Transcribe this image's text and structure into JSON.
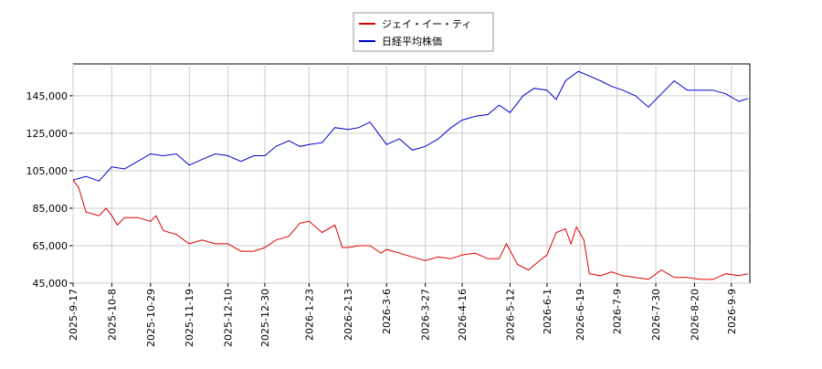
{
  "chart_data": {
    "type": "line",
    "xlim": [
      "2025-9-17",
      "2026-9-19"
    ],
    "xticks": [
      "2025-9-17",
      "2025-10-8",
      "2025-10-29",
      "2025-11-19",
      "2025-12-10",
      "2025-12-30",
      "2026-1-23",
      "2026-2-13",
      "2026-3-6",
      "2026-3-27",
      "2026-4-16",
      "2026-5-12",
      "2026-6-1",
      "2026-6-19",
      "2026-7-9",
      "2026-7-30",
      "2026-8-20",
      "2026-9-9"
    ],
    "ylim": [
      45000,
      162000
    ],
    "yticks": [
      {
        "value": 45000,
        "label": "45,000"
      },
      {
        "value": 65000,
        "label": "65,000"
      },
      {
        "value": 85000,
        "label": "85,000"
      },
      {
        "value": 105000,
        "label": "105,000"
      },
      {
        "value": 125000,
        "label": "125,000"
      },
      {
        "value": 145000,
        "label": "145,000"
      }
    ],
    "grid": true,
    "legend": "top",
    "series": [
      {
        "name": "ジェイ・イー・ティ",
        "color": "#dd0000",
        "x": [
          "2025-9-17",
          "2025-9-20",
          "2025-9-24",
          "2025-10-1",
          "2025-10-5",
          "2025-10-8",
          "2025-10-11",
          "2025-10-15",
          "2025-10-22",
          "2025-10-29",
          "2025-11-1",
          "2025-11-5",
          "2025-11-12",
          "2025-11-19",
          "2025-11-26",
          "2025-12-3",
          "2025-12-10",
          "2025-12-17",
          "2025-12-24",
          "2025-12-30",
          "2026-1-5",
          "2026-1-12",
          "2026-1-18",
          "2026-1-23",
          "2026-1-30",
          "2026-2-6",
          "2026-2-10",
          "2026-2-13",
          "2026-2-19",
          "2026-2-25",
          "2026-3-3",
          "2026-3-6",
          "2026-3-13",
          "2026-3-20",
          "2026-3-27",
          "2026-4-3",
          "2026-4-10",
          "2026-4-16",
          "2026-4-23",
          "2026-4-30",
          "2026-5-6",
          "2026-5-10",
          "2026-5-16",
          "2026-5-22",
          "2026-5-28",
          "2026-6-1",
          "2026-6-6",
          "2026-6-11",
          "2026-6-14",
          "2026-6-17",
          "2026-6-21",
          "2026-6-24",
          "2026-6-30",
          "2026-7-6",
          "2026-7-12",
          "2026-7-19",
          "2026-7-26",
          "2026-8-2",
          "2026-8-9",
          "2026-8-16",
          "2026-8-23",
          "2026-8-30",
          "2026-9-6",
          "2026-9-13",
          "2026-9-18"
        ],
        "values": [
          100000,
          96000,
          83000,
          81000,
          85000,
          81000,
          76000,
          80000,
          80000,
          78000,
          81000,
          73000,
          71000,
          66000,
          68000,
          66000,
          66000,
          62000,
          62000,
          64000,
          68000,
          70000,
          77000,
          78000,
          72000,
          76000,
          64000,
          64000,
          65000,
          65000,
          61000,
          63000,
          61000,
          59000,
          57000,
          59000,
          58000,
          60000,
          61000,
          58000,
          58000,
          66000,
          55000,
          52000,
          57000,
          60000,
          72000,
          74000,
          66000,
          75000,
          68000,
          50000,
          49000,
          51000,
          49000,
          48000,
          47000,
          52000,
          48000,
          48000,
          47000,
          47000,
          50000,
          49000,
          50000
        ]
      },
      {
        "name": "日経平均株価",
        "color": "#0000cc",
        "x": [
          "2025-9-17",
          "2025-9-24",
          "2025-10-1",
          "2025-10-8",
          "2025-10-15",
          "2025-10-22",
          "2025-10-29",
          "2025-11-5",
          "2025-11-12",
          "2025-11-19",
          "2025-11-26",
          "2025-12-3",
          "2025-12-10",
          "2025-12-17",
          "2025-12-24",
          "2025-12-30",
          "2026-1-5",
          "2026-1-12",
          "2026-1-18",
          "2026-1-23",
          "2026-1-30",
          "2026-2-6",
          "2026-2-13",
          "2026-2-19",
          "2026-2-25",
          "2026-3-6",
          "2026-3-13",
          "2026-3-20",
          "2026-3-27",
          "2026-4-3",
          "2026-4-10",
          "2026-4-16",
          "2026-4-23",
          "2026-4-30",
          "2026-5-6",
          "2026-5-12",
          "2026-5-19",
          "2026-5-25",
          "2026-6-1",
          "2026-6-6",
          "2026-6-11",
          "2026-6-18",
          "2026-6-23",
          "2026-6-30",
          "2026-7-6",
          "2026-7-12",
          "2026-7-19",
          "2026-7-26",
          "2026-8-2",
          "2026-8-9",
          "2026-8-16",
          "2026-8-23",
          "2026-8-30",
          "2026-9-6",
          "2026-9-13",
          "2026-9-18"
        ],
        "values": [
          100000,
          102000,
          99500,
          107000,
          106000,
          110000,
          114000,
          113000,
          114000,
          108000,
          111000,
          114000,
          113000,
          110000,
          113000,
          113000,
          118000,
          121000,
          118000,
          119000,
          120000,
          128000,
          127000,
          128000,
          131000,
          119000,
          122000,
          116000,
          118000,
          122000,
          128000,
          132000,
          134000,
          135000,
          140000,
          136000,
          145000,
          149000,
          148000,
          143000,
          153000,
          158000,
          156000,
          153000,
          150000,
          148000,
          145000,
          139000,
          146000,
          153000,
          148000,
          148000,
          148000,
          146000,
          142000,
          143500
        ]
      }
    ]
  }
}
